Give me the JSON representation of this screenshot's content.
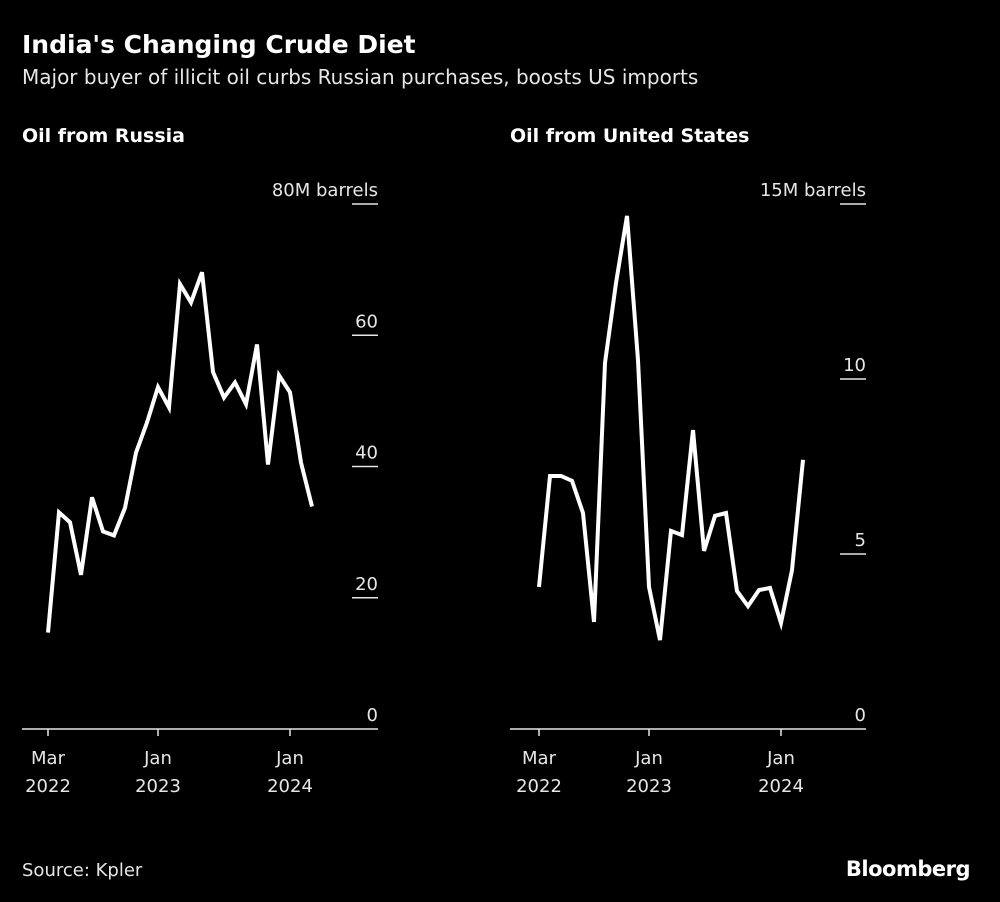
{
  "title": "India's Changing Crude Diet",
  "subtitle": "Major buyer of illicit oil curbs Russian purchases, boosts US imports",
  "source": "Source: Kpler",
  "brand": "Bloomberg",
  "chart_data": [
    {
      "type": "line",
      "title": "Oil from Russia",
      "unit_label": "80M barrels",
      "ylim": [
        0,
        80
      ],
      "yticks": [
        0,
        20,
        40,
        60,
        80
      ],
      "ytick_labels": [
        "0",
        "20",
        "40",
        "60",
        "80M barrels"
      ],
      "xticks": [
        {
          "date": "2022-03",
          "label": [
            "Mar",
            "2022"
          ]
        },
        {
          "date": "2023-01",
          "label": [
            "Jan",
            "2023"
          ]
        },
        {
          "date": "2024-01",
          "label": [
            "Jan",
            "2024"
          ]
        }
      ],
      "x": [
        "2022-03",
        "2022-04",
        "2022-05",
        "2022-06",
        "2022-07",
        "2022-08",
        "2022-09",
        "2022-10",
        "2022-11",
        "2022-12",
        "2023-01",
        "2023-02",
        "2023-03",
        "2023-04",
        "2023-05",
        "2023-06",
        "2023-07",
        "2023-08",
        "2023-09",
        "2023-10",
        "2023-11",
        "2023-12",
        "2024-01",
        "2024-02",
        "2024-03"
      ],
      "values": [
        14.7,
        33.0,
        31.5,
        23.5,
        35.3,
        30.1,
        29.5,
        33.7,
        42.1,
        46.7,
        52.1,
        49.0,
        67.8,
        65.0,
        69.6,
        54.4,
        50.5,
        52.8,
        49.5,
        58.6,
        40.3,
        53.9,
        51.3,
        40.6,
        33.9
      ],
      "color": "#ffffff",
      "grid": false
    },
    {
      "type": "line",
      "title": "Oil from United States",
      "unit_label": "15M barrels",
      "ylim": [
        0,
        15
      ],
      "yticks": [
        0,
        5,
        10,
        15
      ],
      "ytick_labels": [
        "0",
        "5",
        "10",
        "15M barrels"
      ],
      "xticks": [
        {
          "date": "2022-03",
          "label": [
            "Mar",
            "2022"
          ]
        },
        {
          "date": "2023-01",
          "label": [
            "Jan",
            "2023"
          ]
        },
        {
          "date": "2024-01",
          "label": [
            "Jan",
            "2024"
          ]
        }
      ],
      "x": [
        "2022-03",
        "2022-04",
        "2022-05",
        "2022-06",
        "2022-07",
        "2022-08",
        "2022-09",
        "2022-10",
        "2022-11",
        "2022-12",
        "2023-01",
        "2023-02",
        "2023-03",
        "2023-04",
        "2023-05",
        "2023-06",
        "2023-07",
        "2023-08",
        "2023-09",
        "2023-10",
        "2023-11",
        "2023-12",
        "2024-01",
        "2024-02",
        "2024-03"
      ],
      "values": [
        4.06,
        7.23,
        7.23,
        7.09,
        6.17,
        3.06,
        10.46,
        12.74,
        14.66,
        10.54,
        4.06,
        2.54,
        5.66,
        5.54,
        8.54,
        5.09,
        6.09,
        6.17,
        3.94,
        3.51,
        3.97,
        4.03,
        3.03,
        4.54,
        7.69
      ],
      "color": "#ffffff",
      "grid": false
    }
  ]
}
